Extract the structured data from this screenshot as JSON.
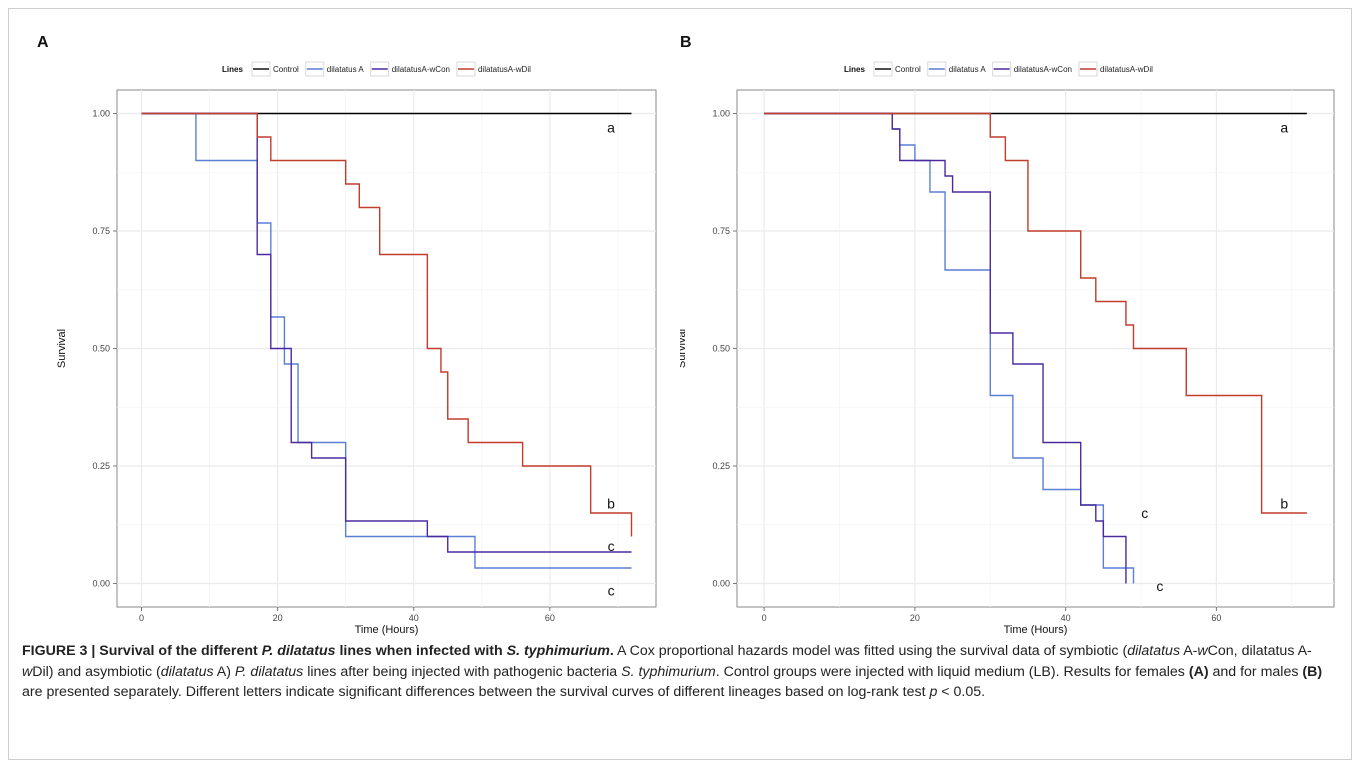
{
  "chart_data": [
    {
      "panel": "A",
      "type": "line",
      "step": true,
      "xlabel": "Time (Hours)",
      "ylabel": "Survival",
      "xlim": [
        -3.6,
        75.6
      ],
      "ylim": [
        -0.05,
        1.05
      ],
      "xticks": [
        0,
        20,
        40,
        60
      ],
      "yticks": [
        0.0,
        0.25,
        0.5,
        0.75,
        1.0
      ],
      "ytick_labels": [
        "0.00",
        "0.25",
        "0.50",
        "0.75",
        "1.00"
      ],
      "grid": true,
      "legend": {
        "title": "Lines",
        "position": "top"
      },
      "series": [
        {
          "name": "Control",
          "color": "#000000",
          "x": [
            0,
            72
          ],
          "y": [
            1,
            1
          ]
        },
        {
          "name": "dilatatus A",
          "color": "#5a7fd6",
          "x": [
            0,
            8,
            17,
            19,
            21,
            23,
            25,
            30,
            42,
            49,
            72
          ],
          "y": [
            1,
            0.9,
            0.767,
            0.567,
            0.467,
            0.3,
            0.3,
            0.1,
            0.1,
            0.033,
            0.033
          ]
        },
        {
          "name": "dilatatusA-wCon",
          "color": "#4b2aa0",
          "x": [
            0,
            17,
            19,
            22,
            25,
            30,
            42,
            45,
            72
          ],
          "y": [
            1,
            0.7,
            0.5,
            0.3,
            0.267,
            0.133,
            0.1,
            0.067,
            0.067
          ]
        },
        {
          "name": "dilatatusA-wDil",
          "color": "#c23b2b",
          "x": [
            0,
            17,
            19,
            30,
            32,
            35,
            37,
            42,
            44,
            45,
            48,
            56,
            66,
            72
          ],
          "y": [
            1,
            0.95,
            0.9,
            0.85,
            0.8,
            0.7,
            0.7,
            0.5,
            0.45,
            0.35,
            0.3,
            0.25,
            0.15,
            0.1
          ]
        }
      ],
      "annotations": [
        {
          "text": "a",
          "x": 69,
          "y": 0.97
        },
        {
          "text": "b",
          "x": 69,
          "y": 0.17
        },
        {
          "text": "c",
          "x": 69,
          "y": 0.08
        },
        {
          "text": "c",
          "x": 69,
          "y": -0.015
        }
      ]
    },
    {
      "panel": "B",
      "type": "line",
      "step": true,
      "xlabel": "Time (Hours)",
      "ylabel": "Survival",
      "xlim": [
        -3.6,
        75.6
      ],
      "ylim": [
        -0.05,
        1.05
      ],
      "xticks": [
        0,
        20,
        40,
        60
      ],
      "yticks": [
        0.0,
        0.25,
        0.5,
        0.75,
        1.0
      ],
      "ytick_labels": [
        "0.00",
        "0.25",
        "0.50",
        "0.75",
        "1.00"
      ],
      "grid": true,
      "legend": {
        "title": "Lines",
        "position": "top"
      },
      "series": [
        {
          "name": "Control",
          "color": "#000000",
          "x": [
            0,
            72
          ],
          "y": [
            1,
            1
          ]
        },
        {
          "name": "dilatatus A",
          "color": "#5a7fd6",
          "x": [
            0,
            17,
            18,
            20,
            22,
            24,
            30,
            33,
            37,
            42,
            45,
            48,
            49
          ],
          "y": [
            1,
            0.967,
            0.933,
            0.9,
            0.833,
            0.667,
            0.4,
            0.267,
            0.2,
            0.167,
            0.033,
            0.033,
            0
          ]
        },
        {
          "name": "dilatatusA-wCon",
          "color": "#4b2aa0",
          "x": [
            0,
            17,
            18,
            20,
            24,
            25,
            26,
            30,
            33,
            37,
            42,
            44,
            45,
            48
          ],
          "y": [
            1,
            0.967,
            0.9,
            0.9,
            0.867,
            0.833,
            0.833,
            0.533,
            0.467,
            0.3,
            0.167,
            0.133,
            0.1,
            0
          ]
        },
        {
          "name": "dilatatusA-wDil",
          "color": "#c23b2b",
          "x": [
            0,
            30,
            32,
            35,
            37,
            42,
            44,
            48,
            49,
            56,
            66,
            72
          ],
          "y": [
            1,
            0.95,
            0.9,
            0.75,
            0.75,
            0.65,
            0.6,
            0.55,
            0.5,
            0.4,
            0.15,
            0.15
          ]
        }
      ],
      "annotations": [
        {
          "text": "a",
          "x": 69,
          "y": 0.97
        },
        {
          "text": "b",
          "x": 69,
          "y": 0.17
        },
        {
          "text": "c",
          "x": 50.5,
          "y": 0.15
        },
        {
          "text": "c",
          "x": 52.5,
          "y": -0.005
        }
      ]
    }
  ],
  "caption": {
    "label": "FIGURE 3 | Survival of the different ",
    "label_species": "P. dilatatus",
    "label_mid": " lines when infected with ",
    "label_pathogen": "S. typhimurium",
    "label_end": ".",
    "t1": " A Cox proportional hazards model was fitted using the survival data of symbiotic (",
    "t2": "dilatatus",
    "t3": " A-",
    "t4": "w",
    "t5": "Con, dilatatus A-",
    "t6": "w",
    "t7": "Dil) and asymbiotic (",
    "t8": "dilatatus",
    "t9": " A) ",
    "t10": "P. dilatatus",
    "t11": " lines after being injected with pathogenic bacteria ",
    "t12": "S. typhimurium",
    "t13": ". Control groups were injected with liquid medium (LB). Results for females ",
    "t14": "(A)",
    "t15": " and for males ",
    "t16": "(B)",
    "t17": " are presented separately. Different letters indicate significant differences between the survival curves of different lineages based on log-rank test ",
    "t18": "p",
    "t19": " < 0.05."
  }
}
